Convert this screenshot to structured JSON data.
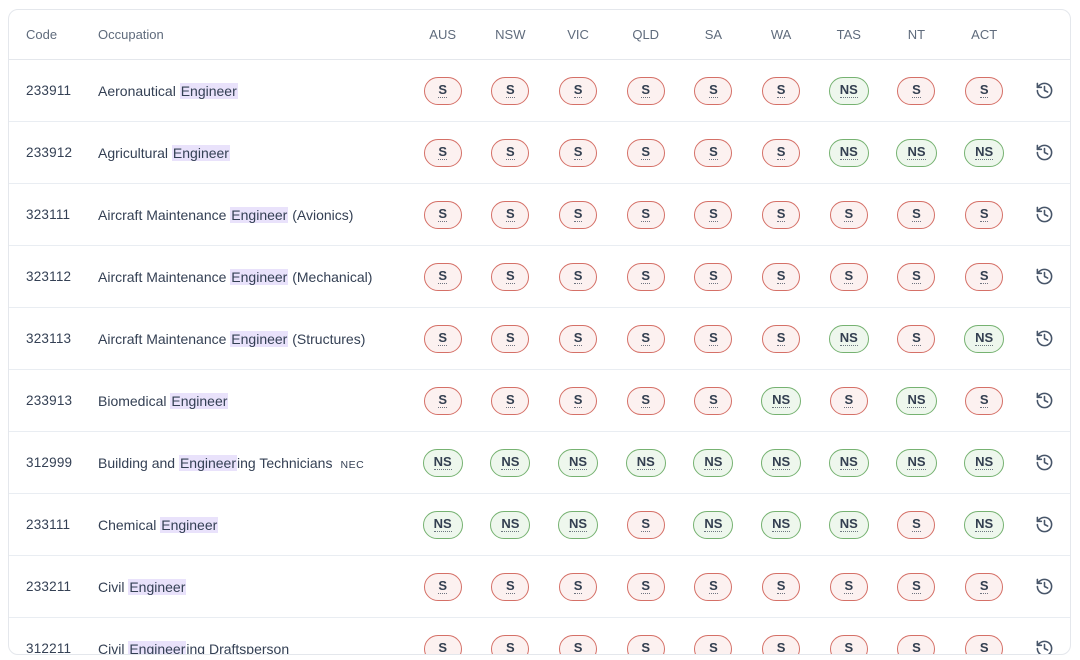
{
  "table": {
    "columns": [
      "Code",
      "Occupation",
      "AUS",
      "NSW",
      "VIC",
      "QLD",
      "SA",
      "WA",
      "TAS",
      "NT",
      "ACT"
    ],
    "highlight_term": "Engineer",
    "status_values": {
      "shortage": "S",
      "no_shortage": "NS"
    },
    "colors": {
      "shortage_border": "#d57067",
      "shortage_bg": "#fcf1f0",
      "no_shortage_border": "#76b271",
      "no_shortage_bg": "#eef7ed",
      "highlight_bg": "#e9e2fb",
      "text": "#344054",
      "header_text": "#5f6b7c",
      "icon": "#475569"
    },
    "rows": [
      {
        "code": "233911",
        "occupation": "Aeronautical Engineer",
        "statuses": [
          "S",
          "S",
          "S",
          "S",
          "S",
          "S",
          "NS",
          "S",
          "S"
        ]
      },
      {
        "code": "233912",
        "occupation": "Agricultural Engineer",
        "statuses": [
          "S",
          "S",
          "S",
          "S",
          "S",
          "S",
          "NS",
          "NS",
          "NS"
        ]
      },
      {
        "code": "323111",
        "occupation": "Aircraft Maintenance Engineer (Avionics)",
        "statuses": [
          "S",
          "S",
          "S",
          "S",
          "S",
          "S",
          "S",
          "S",
          "S"
        ]
      },
      {
        "code": "323112",
        "occupation": "Aircraft Maintenance Engineer (Mechanical)",
        "statuses": [
          "S",
          "S",
          "S",
          "S",
          "S",
          "S",
          "S",
          "S",
          "S"
        ]
      },
      {
        "code": "323113",
        "occupation": "Aircraft Maintenance Engineer (Structures)",
        "statuses": [
          "S",
          "S",
          "S",
          "S",
          "S",
          "S",
          "NS",
          "S",
          "NS"
        ]
      },
      {
        "code": "233913",
        "occupation": "Biomedical Engineer",
        "statuses": [
          "S",
          "S",
          "S",
          "S",
          "S",
          "NS",
          "S",
          "NS",
          "S"
        ]
      },
      {
        "code": "312999",
        "occupation": "Building and Engineering Technicians",
        "suffix": "NEC",
        "statuses": [
          "NS",
          "NS",
          "NS",
          "NS",
          "NS",
          "NS",
          "NS",
          "NS",
          "NS"
        ]
      },
      {
        "code": "233111",
        "occupation": "Chemical Engineer",
        "statuses": [
          "NS",
          "NS",
          "NS",
          "S",
          "NS",
          "NS",
          "NS",
          "S",
          "NS"
        ]
      },
      {
        "code": "233211",
        "occupation": "Civil Engineer",
        "statuses": [
          "S",
          "S",
          "S",
          "S",
          "S",
          "S",
          "S",
          "S",
          "S"
        ]
      },
      {
        "code": "312211",
        "occupation": "Civil Engineering Draftsperson",
        "statuses": [
          "S",
          "S",
          "S",
          "S",
          "S",
          "S",
          "S",
          "S",
          "S"
        ]
      }
    ]
  }
}
